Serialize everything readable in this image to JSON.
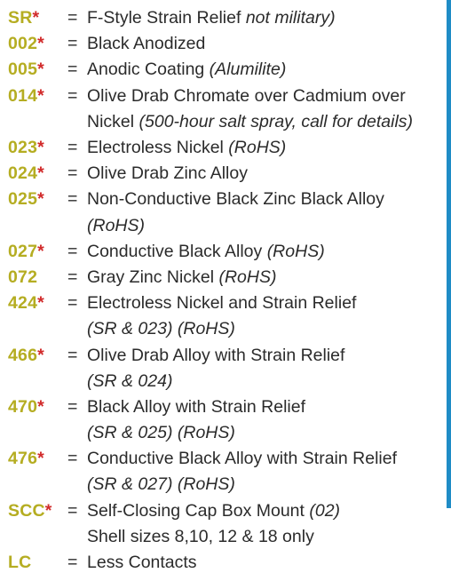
{
  "colors": {
    "code": "#b5ad22",
    "asterisk": "#d12a2a",
    "text": "#2b2b2b",
    "edge_bar": "#1f8cc6"
  },
  "rows": [
    {
      "code": "SR",
      "star": "*",
      "eq": "=",
      "lines": [
        [
          {
            "t": "F-Style Strain Relief ",
            "i": false
          },
          {
            "t": "not military)",
            "i": true
          }
        ]
      ]
    },
    {
      "code": "002",
      "star": "*",
      "eq": "=",
      "lines": [
        [
          {
            "t": "Black Anodized",
            "i": false
          }
        ]
      ]
    },
    {
      "code": "005",
      "star": "*",
      "eq": "=",
      "lines": [
        [
          {
            "t": "Anodic Coating ",
            "i": false
          },
          {
            "t": "(Alumilite)",
            "i": true
          }
        ]
      ]
    },
    {
      "code": "014",
      "star": "*",
      "eq": "=",
      "lines": [
        [
          {
            "t": "Olive Drab Chromate over Cadmium over",
            "i": false
          }
        ],
        [
          {
            "t": "Nickel ",
            "i": false
          },
          {
            "t": "(500-hour salt spray, call for details)",
            "i": true
          }
        ]
      ]
    },
    {
      "code": "023",
      "star": "*",
      "eq": "=",
      "lines": [
        [
          {
            "t": "Electroless Nickel ",
            "i": false
          },
          {
            "t": "(RoHS)",
            "i": true
          }
        ]
      ]
    },
    {
      "code": "024",
      "star": "*",
      "eq": "=",
      "lines": [
        [
          {
            "t": "Olive Drab Zinc Alloy",
            "i": false
          }
        ]
      ]
    },
    {
      "code": "025",
      "star": "*",
      "eq": "=",
      "lines": [
        [
          {
            "t": "Non-Conductive Black Zinc Black Alloy",
            "i": false
          }
        ],
        [
          {
            "t": "(RoHS)",
            "i": true
          }
        ]
      ]
    },
    {
      "code": "027",
      "star": "*",
      "eq": "=",
      "lines": [
        [
          {
            "t": "Conductive Black Alloy ",
            "i": false
          },
          {
            "t": "(RoHS)",
            "i": true
          }
        ]
      ]
    },
    {
      "code": "072",
      "star": "",
      "eq": "=",
      "lines": [
        [
          {
            "t": "Gray Zinc Nickel ",
            "i": false
          },
          {
            "t": "(RoHS)",
            "i": true
          }
        ]
      ]
    },
    {
      "code": "424",
      "star": "*",
      "eq": "=",
      "lines": [
        [
          {
            "t": "Electroless Nickel and Strain Relief",
            "i": false
          }
        ],
        [
          {
            "t": "(SR & 023) (RoHS)",
            "i": true
          }
        ]
      ]
    },
    {
      "code": "466",
      "star": "*",
      "eq": "=",
      "lines": [
        [
          {
            "t": "Olive Drab Alloy with Strain Relief",
            "i": false
          }
        ],
        [
          {
            "t": "(SR & 024)",
            "i": true
          }
        ]
      ]
    },
    {
      "code": "470",
      "star": "*",
      "eq": "=",
      "lines": [
        [
          {
            "t": "Black Alloy with Strain Relief",
            "i": false
          }
        ],
        [
          {
            "t": "(SR & 025) (RoHS)",
            "i": true
          }
        ]
      ]
    },
    {
      "code": "476",
      "star": "*",
      "eq": "=",
      "lines": [
        [
          {
            "t": "Conductive Black Alloy with Strain Relief",
            "i": false
          }
        ],
        [
          {
            "t": "(SR & 027) (RoHS)",
            "i": true
          }
        ]
      ]
    },
    {
      "code": "SCC",
      "star": "*",
      "eq": "=",
      "lines": [
        [
          {
            "t": "Self-Closing Cap Box Mount ",
            "i": false
          },
          {
            "t": "(02)",
            "i": true
          }
        ],
        [
          {
            "t": "Shell sizes 8,10, 12 & 18 only",
            "i": false
          }
        ]
      ]
    },
    {
      "code": "LC",
      "star": "",
      "eq": "=",
      "lines": [
        [
          {
            "t": "Less Contacts",
            "i": false
          }
        ]
      ]
    }
  ]
}
